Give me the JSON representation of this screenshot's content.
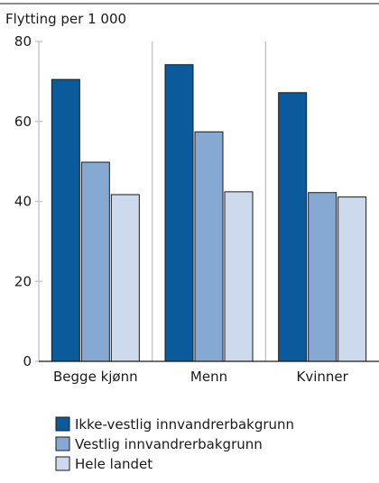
{
  "chart_data": {
    "type": "bar",
    "title": "",
    "ylabel": "Flytting per 1 000",
    "xlabel": "",
    "ylim": [
      0,
      80
    ],
    "yticks": [
      0,
      20,
      40,
      60,
      80
    ],
    "categories": [
      "Begge kjønn",
      "Menn",
      "Kvinner"
    ],
    "grid": "vertical",
    "legend_position": "bottom",
    "series": [
      {
        "name": "Ikke-vestlig innvandrerbakgrunn",
        "color": "#0a5a9c",
        "values": [
          70.5,
          74.2,
          67.2
        ]
      },
      {
        "name": "Vestlig innvandrerbakgrunn",
        "color": "#86a9d3",
        "values": [
          49.8,
          57.4,
          42.2
        ]
      },
      {
        "name": "Hele landet",
        "color": "#cdd9ec",
        "values": [
          41.7,
          42.4,
          41.1
        ]
      }
    ]
  }
}
